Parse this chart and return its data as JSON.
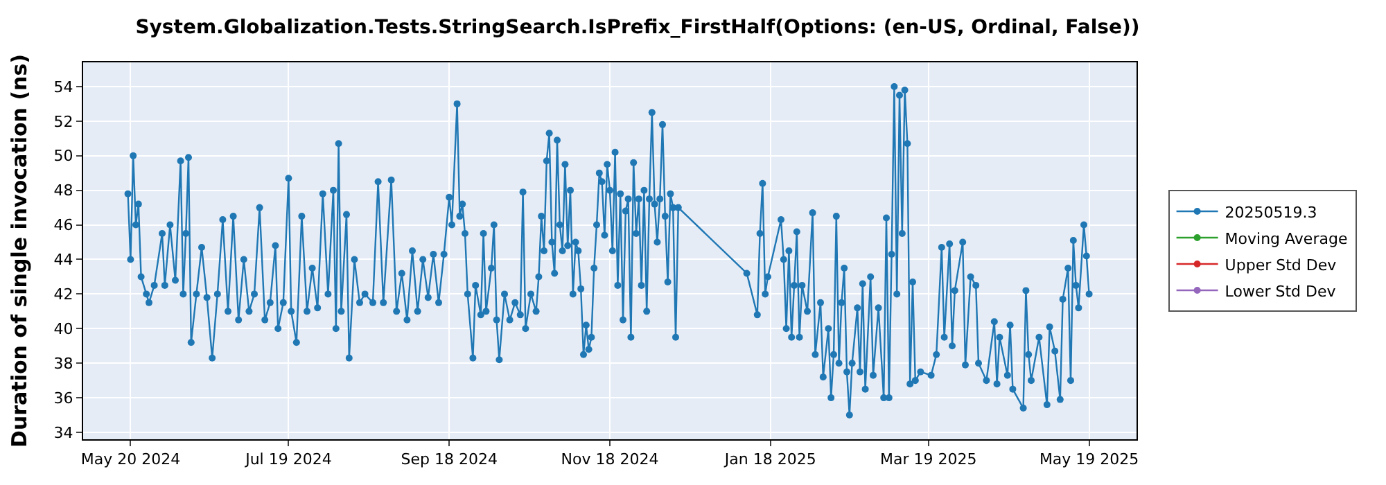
{
  "chart_data": {
    "type": "line",
    "title": "System.Globalization.Tests.StringSearch.IsPrefix_FirstHalf(Options: (en-US, Ordinal, False))",
    "ylabel": "Duration of single invocation (ns)",
    "series": [
      {
        "name": "20250519.3",
        "color": "#1f77b4",
        "x": [
          "2024-05-19",
          "2024-05-20",
          "2024-05-21",
          "2024-05-22",
          "2024-05-23",
          "2024-05-24",
          "2024-05-26",
          "2024-05-27",
          "2024-05-29",
          "2024-06-01",
          "2024-06-02",
          "2024-06-04",
          "2024-06-06",
          "2024-06-08",
          "2024-06-09",
          "2024-06-10",
          "2024-06-11",
          "2024-06-12",
          "2024-06-14",
          "2024-06-16",
          "2024-06-18",
          "2024-06-20",
          "2024-06-22",
          "2024-06-24",
          "2024-06-26",
          "2024-06-28",
          "2024-06-30",
          "2024-07-02",
          "2024-07-04",
          "2024-07-06",
          "2024-07-08",
          "2024-07-10",
          "2024-07-12",
          "2024-07-14",
          "2024-07-15",
          "2024-07-17",
          "2024-07-19",
          "2024-07-20",
          "2024-07-22",
          "2024-07-24",
          "2024-07-26",
          "2024-07-28",
          "2024-07-30",
          "2024-08-01",
          "2024-08-03",
          "2024-08-05",
          "2024-08-06",
          "2024-08-07",
          "2024-08-08",
          "2024-08-10",
          "2024-08-11",
          "2024-08-13",
          "2024-08-15",
          "2024-08-17",
          "2024-08-20",
          "2024-08-22",
          "2024-08-24",
          "2024-08-27",
          "2024-08-29",
          "2024-08-31",
          "2024-09-02",
          "2024-09-04",
          "2024-09-06",
          "2024-09-08",
          "2024-09-10",
          "2024-09-12",
          "2024-09-14",
          "2024-09-16",
          "2024-09-18",
          "2024-09-19",
          "2024-09-21",
          "2024-09-22",
          "2024-09-23",
          "2024-09-24",
          "2024-09-25",
          "2024-09-27",
          "2024-09-28",
          "2024-09-30",
          "2024-10-01",
          "2024-10-02",
          "2024-10-04",
          "2024-10-05",
          "2024-10-06",
          "2024-10-07",
          "2024-10-09",
          "2024-10-11",
          "2024-10-13",
          "2024-10-15",
          "2024-10-16",
          "2024-10-17",
          "2024-10-19",
          "2024-10-21",
          "2024-10-22",
          "2024-10-23",
          "2024-10-24",
          "2024-10-25",
          "2024-10-26",
          "2024-10-27",
          "2024-10-28",
          "2024-10-29",
          "2024-10-30",
          "2024-10-31",
          "2024-11-01",
          "2024-11-02",
          "2024-11-03",
          "2024-11-04",
          "2024-11-05",
          "2024-11-06",
          "2024-11-07",
          "2024-11-08",
          "2024-11-09",
          "2024-11-10",
          "2024-11-11",
          "2024-11-12",
          "2024-11-13",
          "2024-11-14",
          "2024-11-15",
          "2024-11-16",
          "2024-11-17",
          "2024-11-18",
          "2024-11-19",
          "2024-11-20",
          "2024-11-21",
          "2024-11-22",
          "2024-11-23",
          "2024-11-24",
          "2024-11-25",
          "2024-11-26",
          "2024-11-27",
          "2024-11-28",
          "2024-11-29",
          "2024-11-30",
          "2024-12-01",
          "2024-12-02",
          "2024-12-03",
          "2024-12-04",
          "2024-12-05",
          "2024-12-06",
          "2024-12-07",
          "2024-12-08",
          "2024-12-09",
          "2024-12-10",
          "2024-12-11",
          "2024-12-12",
          "2024-12-13",
          "2024-12-14",
          "2025-01-09",
          "2025-01-13",
          "2025-01-14",
          "2025-01-15",
          "2025-01-16",
          "2025-01-17",
          "2025-01-22",
          "2025-01-23",
          "2025-01-24",
          "2025-01-25",
          "2025-01-26",
          "2025-01-27",
          "2025-01-28",
          "2025-01-29",
          "2025-01-30",
          "2025-02-01",
          "2025-02-03",
          "2025-02-04",
          "2025-02-06",
          "2025-02-07",
          "2025-02-09",
          "2025-02-10",
          "2025-02-11",
          "2025-02-12",
          "2025-02-13",
          "2025-02-14",
          "2025-02-15",
          "2025-02-16",
          "2025-02-17",
          "2025-02-18",
          "2025-02-20",
          "2025-02-21",
          "2025-02-22",
          "2025-02-23",
          "2025-02-25",
          "2025-02-26",
          "2025-02-28",
          "2025-03-02",
          "2025-03-03",
          "2025-03-04",
          "2025-03-05",
          "2025-03-06",
          "2025-03-07",
          "2025-03-08",
          "2025-03-09",
          "2025-03-10",
          "2025-03-11",
          "2025-03-12",
          "2025-03-13",
          "2025-03-14",
          "2025-03-16",
          "2025-03-20",
          "2025-03-22",
          "2025-03-24",
          "2025-03-25",
          "2025-03-27",
          "2025-03-28",
          "2025-03-29",
          "2025-04-01",
          "2025-04-02",
          "2025-04-04",
          "2025-04-06",
          "2025-04-07",
          "2025-04-10",
          "2025-04-13",
          "2025-04-14",
          "2025-04-15",
          "2025-04-18",
          "2025-04-19",
          "2025-04-20",
          "2025-04-24",
          "2025-04-25",
          "2025-04-26",
          "2025-04-27",
          "2025-04-30",
          "2025-05-03",
          "2025-05-04",
          "2025-05-06",
          "2025-05-08",
          "2025-05-09",
          "2025-05-11",
          "2025-05-12",
          "2025-05-13",
          "2025-05-14",
          "2025-05-15",
          "2025-05-17",
          "2025-05-18",
          "2025-05-19"
        ],
        "values": [
          47.8,
          44,
          50,
          46,
          47.2,
          43,
          42,
          41.5,
          42.5,
          45.5,
          42.5,
          46,
          42.8,
          49.7,
          42,
          45.5,
          49.9,
          39.2,
          42,
          44.7,
          41.8,
          38.3,
          42,
          46.3,
          41,
          46.5,
          40.5,
          44,
          41,
          42,
          47,
          40.5,
          41.5,
          44.8,
          40,
          41.5,
          48.7,
          41,
          39.2,
          46.5,
          41,
          43.5,
          41.2,
          47.8,
          42,
          48,
          40,
          50.7,
          41,
          46.6,
          38.3,
          44,
          41.5,
          42,
          41.5,
          48.5,
          41.5,
          48.6,
          41,
          43.2,
          40.5,
          44.5,
          41,
          44,
          41.8,
          44.3,
          41.5,
          44.3,
          47.6,
          46,
          53,
          46.5,
          47.2,
          45.5,
          42,
          38.3,
          42.5,
          40.8,
          45.5,
          41,
          43.5,
          46,
          40.5,
          38.2,
          42,
          40.5,
          41.5,
          40.8,
          47.9,
          40,
          42,
          41,
          43,
          46.5,
          44.5,
          49.7,
          51.3,
          45,
          43.2,
          50.9,
          46,
          44.5,
          49.5,
          44.8,
          48,
          42,
          45,
          44.5,
          42.3,
          38.5,
          40.2,
          38.8,
          39.5,
          43.5,
          46,
          49,
          48.5,
          45.4,
          49.5,
          48,
          44.5,
          50.2,
          42.5,
          47.8,
          40.5,
          46.8,
          47.5,
          39.5,
          49.6,
          45.5,
          47.5,
          42.5,
          48,
          41,
          47.5,
          52.5,
          47.2,
          45,
          47.5,
          51.8,
          46.5,
          42.7,
          47.8,
          47,
          39.5,
          47,
          43.2,
          40.8,
          45.5,
          48.4,
          42,
          43,
          46.3,
          44,
          40,
          44.5,
          39.5,
          42.5,
          45.6,
          39.5,
          42.5,
          41,
          46.7,
          38.5,
          41.5,
          37.2,
          40,
          36,
          38.5,
          46.5,
          38,
          41.5,
          43.5,
          37.5,
          35,
          38,
          41.2,
          37.5,
          42.6,
          36.5,
          43,
          37.3,
          41.2,
          36,
          46.4,
          36,
          44.3,
          54,
          42,
          53.5,
          45.5,
          53.8,
          50.7,
          36.8,
          42.7,
          37,
          37.5,
          37.3,
          38.5,
          44.7,
          39.5,
          44.9,
          39,
          42.2,
          45,
          37.9,
          43,
          42.5,
          38,
          37,
          40.4,
          36.8,
          39.5,
          37.3,
          40.2,
          36.5,
          35.4,
          42.2,
          38.5,
          37,
          39.5,
          35.6,
          40.1,
          38.7,
          35.9,
          41.7,
          43.5,
          37,
          45.1,
          42.5,
          41.2,
          46,
          44.2,
          42
        ]
      },
      {
        "name": "Moving Average",
        "color": "#2ca02c"
      },
      {
        "name": "Upper Std Dev",
        "color": "#d62728"
      },
      {
        "name": "Lower Std Dev",
        "color": "#9467bd"
      }
    ],
    "xlim": [
      "2024-05-02",
      "2025-06-06"
    ],
    "xticks": [
      {
        "value": "2024-05-20",
        "label": "May 20 2024"
      },
      {
        "value": "2024-07-19",
        "label": "Jul 19 2024"
      },
      {
        "value": "2024-09-18",
        "label": "Sep 18 2024"
      },
      {
        "value": "2024-11-18",
        "label": "Nov 18 2024"
      },
      {
        "value": "2025-01-18",
        "label": "Jan 18 2025"
      },
      {
        "value": "2025-03-19",
        "label": "Mar 19 2025"
      },
      {
        "value": "2025-05-19",
        "label": "May 19 2025"
      }
    ],
    "ylim": [
      33.6,
      55.4
    ],
    "yticks": [
      34,
      36,
      38,
      40,
      42,
      44,
      46,
      48,
      50,
      52,
      54
    ],
    "grid": true,
    "legend": "right",
    "marker": "circle",
    "line_style": "solid"
  }
}
